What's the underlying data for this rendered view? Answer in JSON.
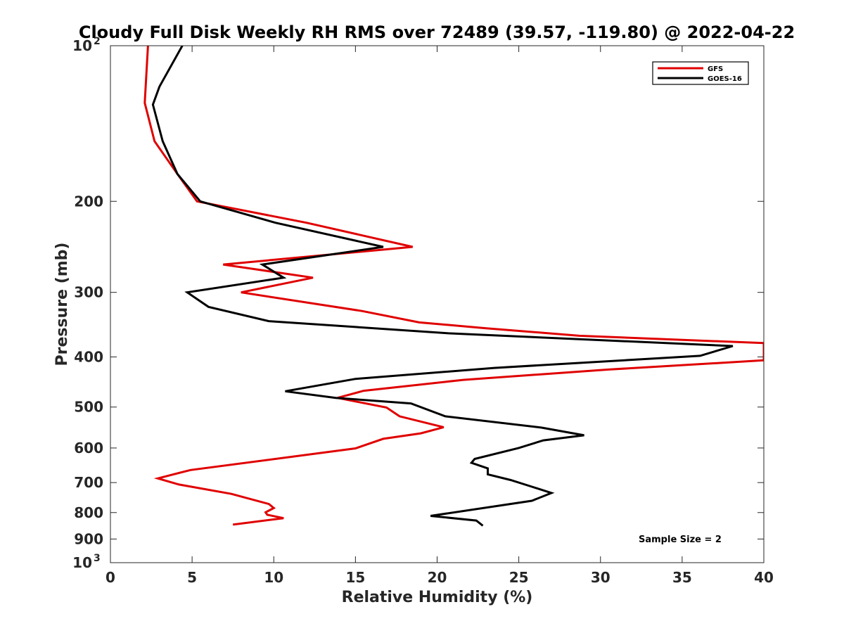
{
  "chart_data": {
    "type": "line",
    "title": "Cloudy Full Disk Weekly RH RMS over 72489 (39.57, -119.80) @ 2022-04-22",
    "xlabel": "Relative Humidity (%)",
    "ylabel": "Pressure (mb)",
    "xlim": [
      0,
      40
    ],
    "ylim": [
      100,
      1000
    ],
    "y_scale": "log",
    "y_reversed": true,
    "x_ticks": [
      {
        "value": 0,
        "label": "0"
      },
      {
        "value": 5,
        "label": "5"
      },
      {
        "value": 10,
        "label": "10"
      },
      {
        "value": 15,
        "label": "15"
      },
      {
        "value": 20,
        "label": "20"
      },
      {
        "value": 25,
        "label": "25"
      },
      {
        "value": 30,
        "label": "30"
      },
      {
        "value": 35,
        "label": "35"
      },
      {
        "value": 40,
        "label": "40"
      }
    ],
    "y_ticks": [
      {
        "value": 100,
        "base": "10",
        "exp": "2"
      },
      {
        "value": 200,
        "label": "200"
      },
      {
        "value": 300,
        "label": "300"
      },
      {
        "value": 400,
        "label": "400"
      },
      {
        "value": 500,
        "label": "500"
      },
      {
        "value": 600,
        "label": "600"
      },
      {
        "value": 700,
        "label": "700"
      },
      {
        "value": 800,
        "label": "800"
      },
      {
        "value": 900,
        "label": "900"
      },
      {
        "value": 1000,
        "base": "10",
        "exp": "3"
      }
    ],
    "grid": false,
    "legend_position": "top-right",
    "annotation": "Sample Size = 2",
    "series": [
      {
        "name": "GFS",
        "color": "#e00000",
        "points": [
          [
            2.3,
            100
          ],
          [
            2.1,
            129
          ],
          [
            2.7,
            153
          ],
          [
            4.1,
            177
          ],
          [
            5.3,
            200
          ],
          [
            12.0,
            220
          ],
          [
            18.5,
            245
          ],
          [
            6.9,
            265
          ],
          [
            12.4,
            281
          ],
          [
            8.0,
            300
          ],
          [
            15.4,
            326
          ],
          [
            18.9,
            343
          ],
          [
            23.0,
            352
          ],
          [
            28.7,
            364
          ],
          [
            40.0,
            376
          ],
          [
            40.0,
            406
          ],
          [
            30.5,
            423
          ],
          [
            21.6,
            443
          ],
          [
            15.5,
            465
          ],
          [
            13.9,
            480
          ],
          [
            16.9,
            501
          ],
          [
            17.7,
            521
          ],
          [
            20.4,
            547
          ],
          [
            19.0,
            562
          ],
          [
            16.7,
            576
          ],
          [
            15.0,
            601
          ],
          [
            4.9,
            662
          ],
          [
            2.9,
            687
          ],
          [
            4.2,
            706
          ],
          [
            7.4,
            736
          ],
          [
            9.7,
            770
          ],
          [
            10.0,
            784
          ],
          [
            9.5,
            799
          ],
          [
            9.6,
            808
          ],
          [
            10.6,
            820
          ],
          [
            7.5,
            844
          ]
        ]
      },
      {
        "name": "GOES-16",
        "color": "#000000",
        "points": [
          [
            4.4,
            100
          ],
          [
            3.0,
            120
          ],
          [
            2.6,
            130
          ],
          [
            3.2,
            153
          ],
          [
            4.1,
            177
          ],
          [
            5.5,
            200
          ],
          [
            10.1,
            220
          ],
          [
            16.7,
            245
          ],
          [
            9.3,
            265
          ],
          [
            10.6,
            281
          ],
          [
            4.7,
            300
          ],
          [
            6.0,
            320
          ],
          [
            9.7,
            341
          ],
          [
            20.7,
            360
          ],
          [
            38.1,
            381
          ],
          [
            36.1,
            398
          ],
          [
            23.5,
            420
          ],
          [
            15.0,
            441
          ],
          [
            10.7,
            466
          ],
          [
            13.8,
            480
          ],
          [
            18.4,
            492
          ],
          [
            20.5,
            521
          ],
          [
            26.4,
            548
          ],
          [
            29.0,
            567
          ],
          [
            26.5,
            580
          ],
          [
            25.0,
            600
          ],
          [
            22.3,
            630
          ],
          [
            22.1,
            641
          ],
          [
            23.1,
            657
          ],
          [
            23.1,
            675
          ],
          [
            24.5,
            692
          ],
          [
            25.8,
            713
          ],
          [
            27.0,
            733
          ],
          [
            25.8,
            759
          ],
          [
            19.6,
            812
          ],
          [
            22.4,
            829
          ],
          [
            22.8,
            848
          ]
        ]
      }
    ]
  }
}
